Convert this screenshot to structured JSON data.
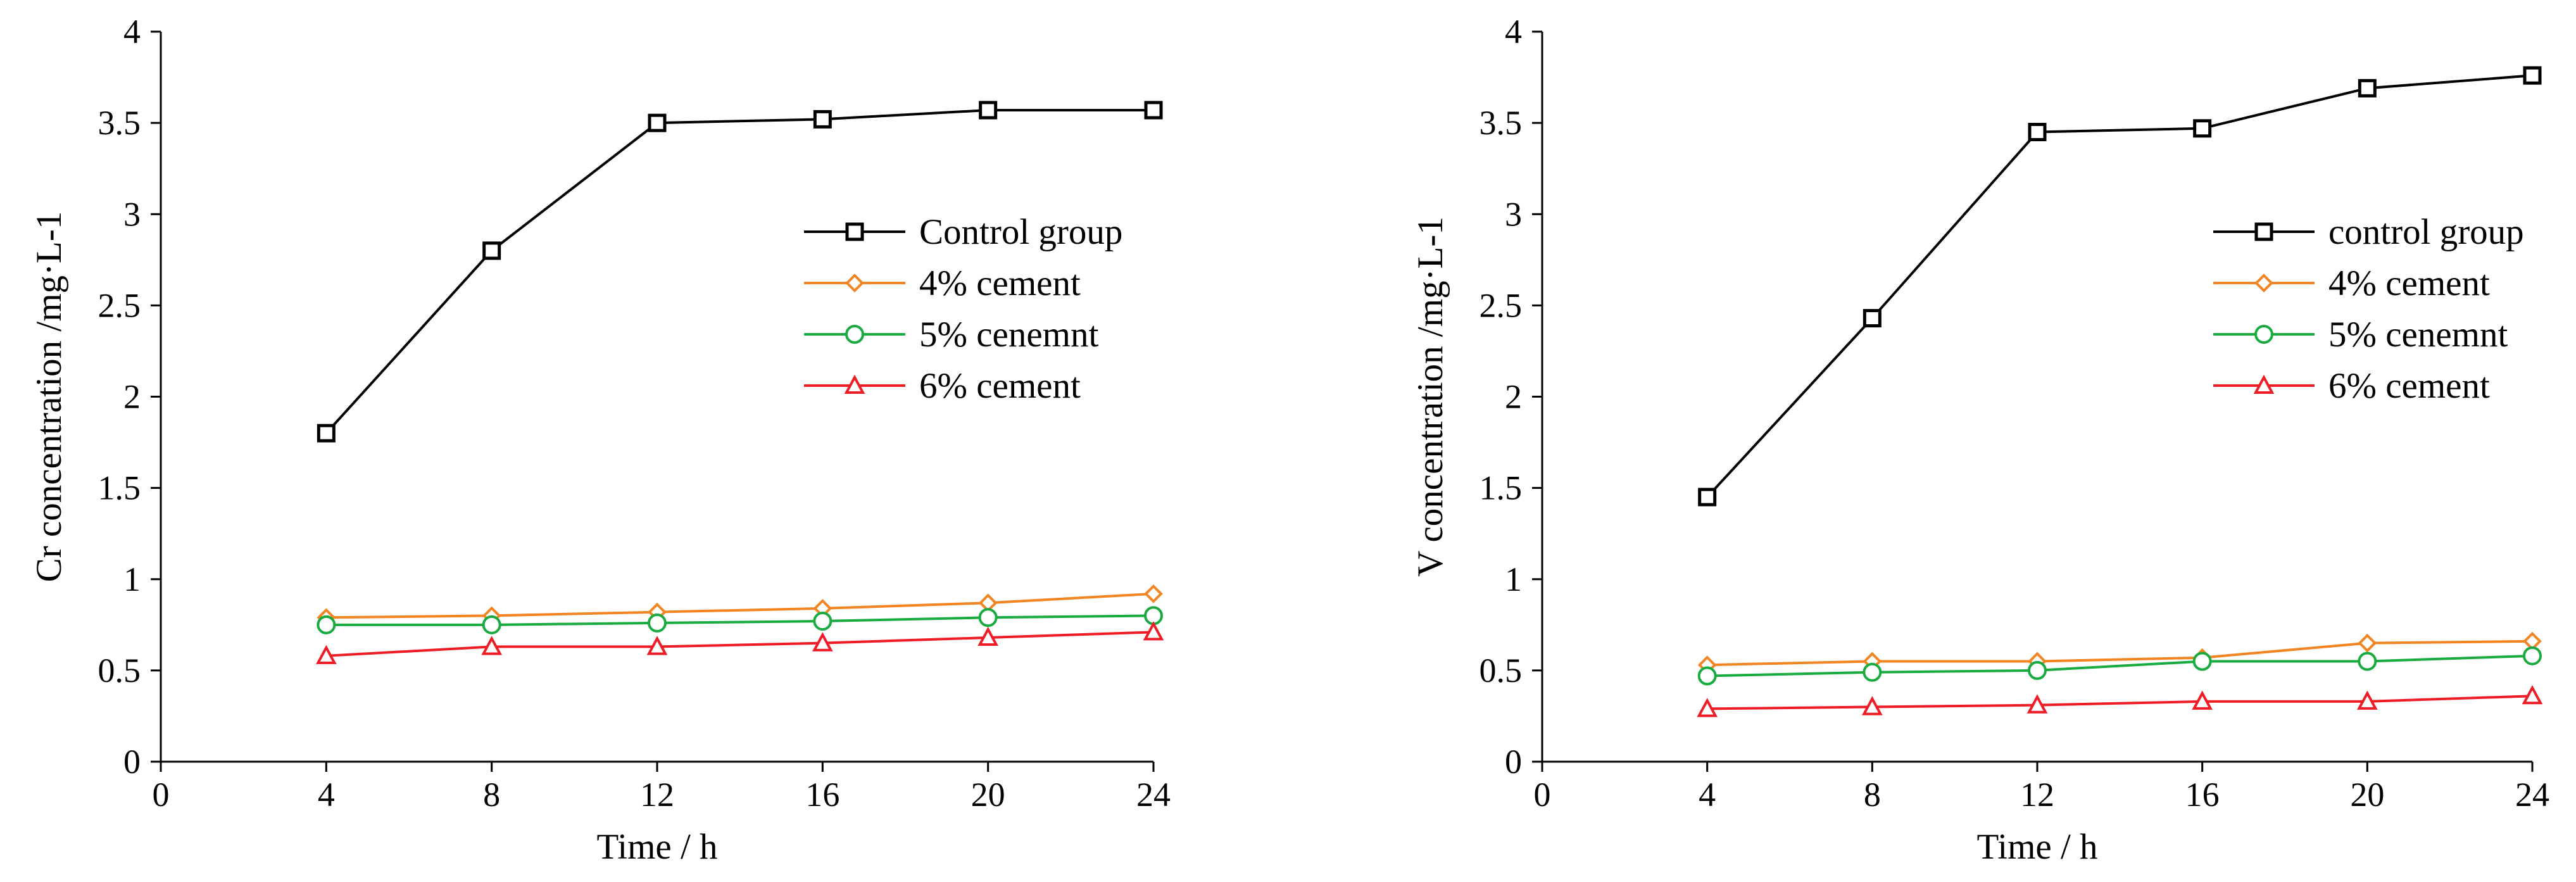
{
  "chart_data": [
    {
      "type": "line",
      "title": "",
      "xlabel": "Time / h",
      "ylabel": "Cr concentration /mg·L-1",
      "xlim": [
        0,
        24
      ],
      "ylim": [
        0,
        4
      ],
      "xticks": [
        0,
        4,
        8,
        12,
        16,
        20,
        24
      ],
      "yticks": [
        0,
        0.5,
        1,
        1.5,
        2,
        2.5,
        3,
        3.5,
        4
      ],
      "grid": false,
      "legend_position": "right",
      "x": [
        4,
        8,
        12,
        16,
        20,
        24
      ],
      "series": [
        {
          "name": "Control group",
          "marker": "square",
          "color": "#000000",
          "values": [
            1.8,
            2.8,
            3.5,
            3.52,
            3.57,
            3.57
          ]
        },
        {
          "name": "4% cement",
          "marker": "diamond",
          "color": "#F28522",
          "values": [
            0.79,
            0.8,
            0.82,
            0.84,
            0.87,
            0.92
          ]
        },
        {
          "name": "5% cenemnt",
          "marker": "circle",
          "color": "#1AAB40",
          "values": [
            0.75,
            0.75,
            0.76,
            0.77,
            0.79,
            0.8
          ]
        },
        {
          "name": "6% cement",
          "marker": "triangle",
          "color": "#EE1C25",
          "values": [
            0.58,
            0.63,
            0.63,
            0.65,
            0.68,
            0.71
          ]
        }
      ]
    },
    {
      "type": "line",
      "title": "",
      "xlabel": "Time / h",
      "ylabel": "V concentration /mg·L-1",
      "xlim": [
        0,
        24
      ],
      "ylim": [
        0,
        4
      ],
      "xticks": [
        0,
        4,
        8,
        12,
        16,
        20,
        24
      ],
      "yticks": [
        0,
        0.5,
        1,
        1.5,
        2,
        2.5,
        3,
        3.5,
        4
      ],
      "grid": false,
      "legend_position": "right",
      "x": [
        4,
        8,
        12,
        16,
        20,
        24
      ],
      "series": [
        {
          "name": "control group",
          "marker": "square",
          "color": "#000000",
          "values": [
            1.45,
            2.43,
            3.45,
            3.47,
            3.69,
            3.76
          ]
        },
        {
          "name": "4% cement",
          "marker": "diamond",
          "color": "#F28522",
          "values": [
            0.53,
            0.55,
            0.55,
            0.57,
            0.65,
            0.66
          ]
        },
        {
          "name": "5% cenemnt",
          "marker": "circle",
          "color": "#1AAB40",
          "values": [
            0.47,
            0.49,
            0.5,
            0.55,
            0.55,
            0.58
          ]
        },
        {
          "name": "6% cement",
          "marker": "triangle",
          "color": "#EE1C25",
          "values": [
            0.29,
            0.3,
            0.31,
            0.33,
            0.33,
            0.36
          ]
        }
      ]
    }
  ]
}
